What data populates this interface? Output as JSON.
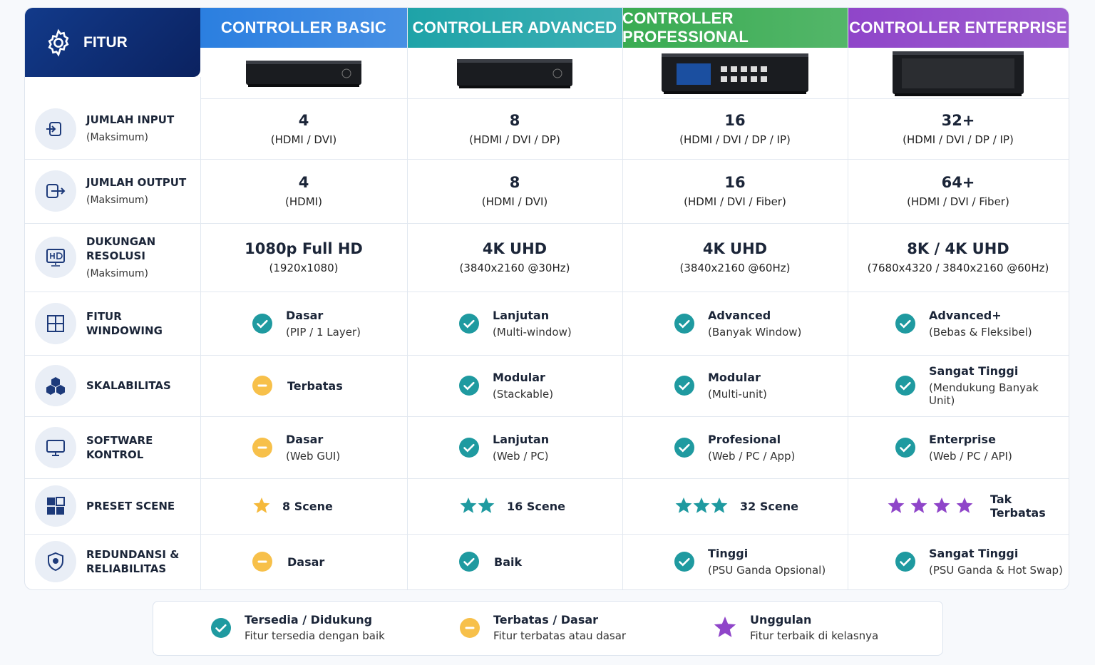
{
  "header": {
    "feature_label": "FITUR",
    "columns": [
      {
        "name": "CONTROLLER BASIC",
        "color": "#2b7fe0"
      },
      {
        "name": "CONTROLLER ADVANCED",
        "color": "#1ea3a8"
      },
      {
        "name": "CONTROLLER PROFESSIONAL",
        "color": "#39ab52"
      },
      {
        "name": "CONTROLLER ENTERPRISE",
        "color": "#8f45c9"
      }
    ]
  },
  "rows": [
    {
      "label": "JUMLAH INPUT",
      "sublabel": "(Maksimum)",
      "style": "value",
      "cells": [
        {
          "main": "4",
          "sub": "(HDMI / DVI)"
        },
        {
          "main": "8",
          "sub": "(HDMI / DVI / DP)"
        },
        {
          "main": "16",
          "sub": "(HDMI / DVI / DP / IP)"
        },
        {
          "main": "32+",
          "sub": "(HDMI / DVI / DP / IP)"
        }
      ]
    },
    {
      "label": "JUMLAH OUTPUT",
      "sublabel": "(Maksimum)",
      "style": "value",
      "cells": [
        {
          "main": "4",
          "sub": "(HDMI)"
        },
        {
          "main": "8",
          "sub": "(HDMI / DVI)"
        },
        {
          "main": "16",
          "sub": "(HDMI / DVI / Fiber)"
        },
        {
          "main": "64+",
          "sub": "(HDMI / DVI / Fiber)"
        }
      ]
    },
    {
      "label": "DUKUNGAN RESOLUSI",
      "sublabel": "(Maksimum)",
      "style": "value",
      "cells": [
        {
          "main": "1080p Full HD",
          "sub": "(1920x1080)"
        },
        {
          "main": "4K UHD",
          "sub": "(3840x2160 @30Hz)"
        },
        {
          "main": "4K UHD",
          "sub": "(3840x2160 @60Hz)"
        },
        {
          "main": "8K / 4K UHD",
          "sub": "(7680x4320 / 3840x2160 @60Hz)"
        }
      ]
    },
    {
      "label": "FITUR WINDOWING",
      "style": "status",
      "cells": [
        {
          "status": "check",
          "main": "Dasar",
          "sub": "(PIP / 1 Layer)"
        },
        {
          "status": "check",
          "main": "Lanjutan",
          "sub": "(Multi-window)"
        },
        {
          "status": "check",
          "main": "Advanced",
          "sub": "(Banyak Window)"
        },
        {
          "status": "check",
          "main": "Advanced+",
          "sub": "(Bebas & Fleksibel)"
        }
      ]
    },
    {
      "label": "SKALABILITAS",
      "style": "status",
      "cells": [
        {
          "status": "limited",
          "main": "Terbatas"
        },
        {
          "status": "check",
          "main": "Modular",
          "sub": "(Stackable)"
        },
        {
          "status": "check",
          "main": "Modular",
          "sub": "(Multi-unit)"
        },
        {
          "status": "check",
          "main": "Sangat Tinggi",
          "sub": "(Mendukung Banyak Unit)"
        }
      ]
    },
    {
      "label": "SOFTWARE KONTROL",
      "style": "status",
      "cells": [
        {
          "status": "limited",
          "main": "Dasar",
          "sub": "(Web GUI)"
        },
        {
          "status": "check",
          "main": "Lanjutan",
          "sub": "(Web / PC)"
        },
        {
          "status": "check",
          "main": "Profesional",
          "sub": "(Web / PC / App)"
        },
        {
          "status": "check",
          "main": "Enterprise",
          "sub": "(Web / PC / API)"
        }
      ]
    },
    {
      "label": "PRESET SCENE",
      "style": "stars",
      "cells": [
        {
          "stars": 1,
          "star_color": "#f5b93b",
          "main": "8 Scene"
        },
        {
          "stars": 2,
          "star_color": "#1f9aa0",
          "main": "16 Scene"
        },
        {
          "stars": 3,
          "star_color": "#1f9aa0",
          "main": "32 Scene"
        },
        {
          "stars": 4,
          "star_color": "#8f45c9",
          "main": "Tak Terbatas"
        }
      ]
    },
    {
      "label": "REDUNDANSI & RELIABILITAS",
      "style": "status",
      "cells": [
        {
          "status": "limited",
          "main": "Dasar"
        },
        {
          "status": "check",
          "main": "Baik"
        },
        {
          "status": "check",
          "main": "Tinggi",
          "sub": "(PSU Ganda Opsional)"
        },
        {
          "status": "check",
          "main": "Sangat Tinggi",
          "sub": "(PSU Ganda & Hot Swap)"
        }
      ]
    }
  ],
  "legend": [
    {
      "status": "check",
      "title": "Tersedia / Didukung",
      "desc": "Fitur tersedia dengan baik"
    },
    {
      "status": "limited",
      "title": "Terbatas / Dasar",
      "desc": "Fitur terbatas atau dasar"
    },
    {
      "status": "star",
      "title": "Unggulan",
      "desc": "Fitur terbaik di kelasnya"
    }
  ]
}
